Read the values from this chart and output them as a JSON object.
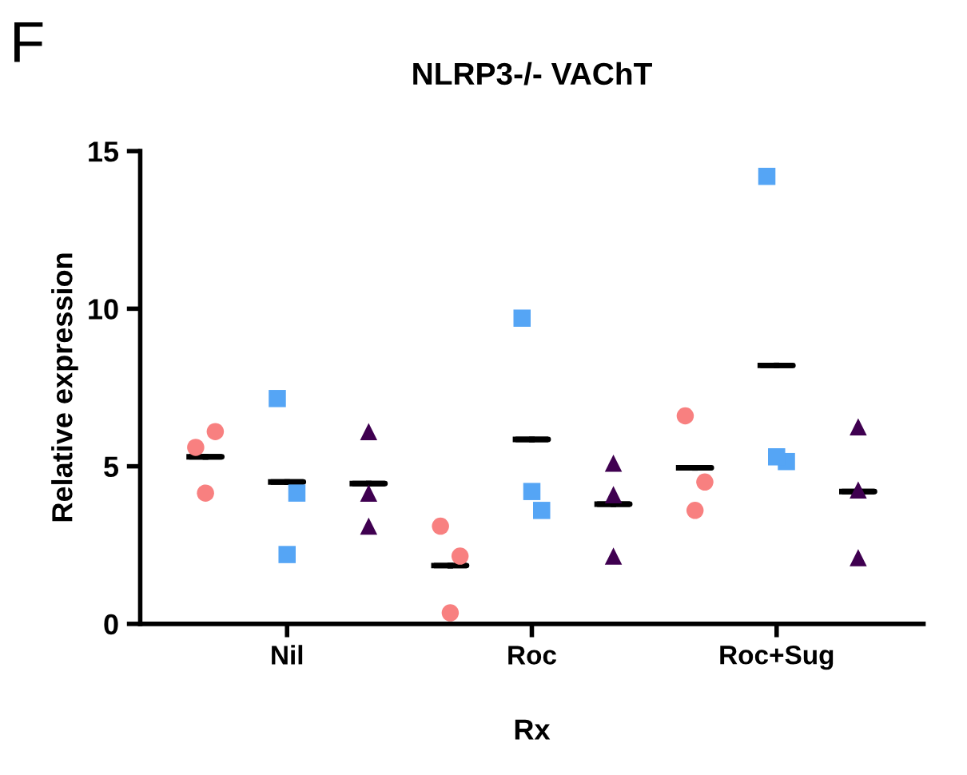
{
  "chart_data": {
    "type": "scatter",
    "title": "NLRP3-/- VAChT",
    "xlabel": "Rx",
    "ylabel": "Relative expression",
    "annotations": [
      "F"
    ],
    "categories": [
      null,
      "Nil",
      null,
      null,
      "Roc",
      null,
      null,
      "Roc+Sug",
      null
    ],
    "ylim": [
      0,
      15
    ],
    "yticks": [
      0,
      5,
      10,
      15
    ],
    "grid": false,
    "series": [
      {
        "color": "#f88080",
        "marker": "circle",
        "values": [
          5.6,
          null,
          null,
          3.1,
          null,
          null,
          6.6,
          null,
          null
        ]
      },
      {
        "color": "#f88080",
        "marker": "circle",
        "values": [
          6.1,
          null,
          null,
          2.15,
          null,
          null,
          4.5,
          null,
          null
        ]
      },
      {
        "color": "#f88080",
        "marker": "circle",
        "values": [
          4.15,
          null,
          null,
          0.35,
          null,
          null,
          3.6,
          null,
          null
        ]
      },
      {
        "color": "#55a5f5",
        "marker": "square",
        "values": [
          null,
          7.15,
          null,
          null,
          9.7,
          null,
          null,
          14.2,
          null
        ]
      },
      {
        "color": "#55a5f5",
        "marker": "square",
        "values": [
          null,
          4.15,
          null,
          null,
          3.6,
          null,
          null,
          5.15,
          null
        ]
      },
      {
        "color": "#55a5f5",
        "marker": "square",
        "values": [
          null,
          2.2,
          null,
          null,
          4.2,
          null,
          null,
          5.3,
          null
        ]
      },
      {
        "color": "#3f0050",
        "marker": "triangle",
        "values": [
          null,
          null,
          6.1,
          null,
          null,
          5.1,
          null,
          null,
          6.25
        ]
      },
      {
        "color": "#3f0050",
        "marker": "triangle",
        "values": [
          null,
          null,
          4.15,
          null,
          null,
          4.1,
          null,
          null,
          4.25
        ]
      },
      {
        "color": "#3f0050",
        "marker": "triangle",
        "values": [
          null,
          null,
          3.1,
          null,
          null,
          2.15,
          null,
          null,
          2.1
        ]
      },
      {
        "type": "box",
        "color": "#000000",
        "boxes": [
          {
            "low": 5.3,
            "q1": 5.3,
            "median": 5.3,
            "q3": 5.3,
            "high": 5.3
          },
          {
            "low": 4.5,
            "q1": 4.5,
            "median": 4.5,
            "q3": 4.5,
            "high": 4.5
          },
          {
            "low": 4.45,
            "q1": 4.45,
            "median": 4.45,
            "q3": 4.45,
            "high": 4.45
          },
          {
            "low": 1.85,
            "q1": 1.85,
            "median": 1.85,
            "q3": 1.85,
            "high": 1.85
          },
          {
            "low": 5.85,
            "q1": 5.85,
            "median": 5.85,
            "q3": 5.85,
            "high": 5.85
          },
          {
            "low": 3.8,
            "q1": 3.8,
            "median": 3.8,
            "q3": 3.8,
            "high": 3.8
          },
          {
            "low": 4.95,
            "q1": 4.95,
            "median": 4.95,
            "q3": 4.95,
            "high": 4.95
          },
          {
            "low": 8.2,
            "q1": 8.2,
            "median": 8.2,
            "q3": 8.2,
            "high": 8.2
          },
          {
            "low": 4.2,
            "q1": 4.2,
            "median": 4.2,
            "q3": 4.2,
            "high": 4.2
          }
        ]
      }
    ]
  }
}
